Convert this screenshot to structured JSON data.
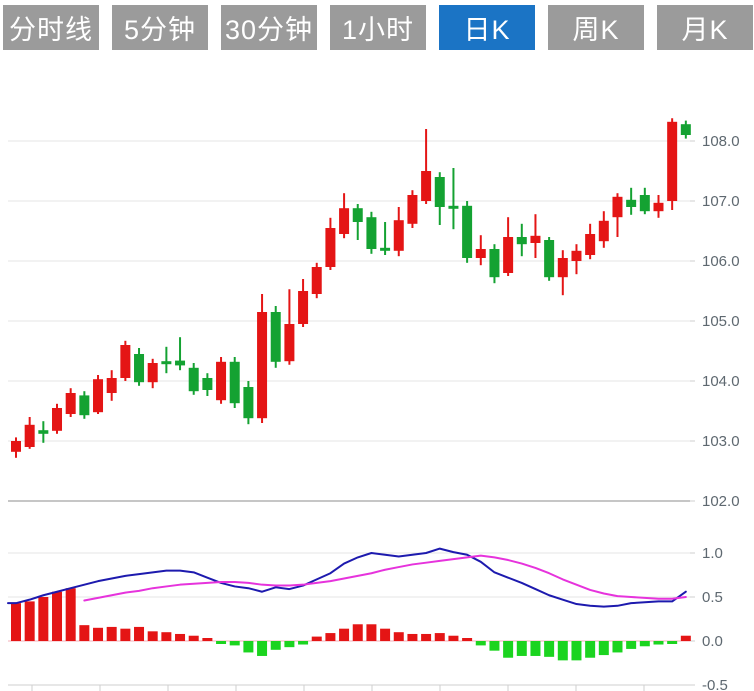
{
  "toolbar": {
    "tabs": [
      {
        "name": "tab-timeshare",
        "label": "分时线",
        "active": false
      },
      {
        "name": "tab-5min",
        "label": "5分钟",
        "active": false
      },
      {
        "name": "tab-30min",
        "label": "30分钟",
        "active": false
      },
      {
        "name": "tab-1hour",
        "label": "1小时",
        "active": false
      },
      {
        "name": "tab-daily-k",
        "label": "日K",
        "active": true
      },
      {
        "name": "tab-weekly-k",
        "label": "周K",
        "active": false
      },
      {
        "name": "tab-monthly-k",
        "label": "月K",
        "active": false
      }
    ]
  },
  "colors": {
    "tab_bg": "#9b9b9b",
    "tab_active_bg": "#1b74c5",
    "tab_text": "#ffffff",
    "candle_up": "#e41515",
    "candle_down": "#14a232",
    "macd_up": "#e41515",
    "macd_down": "#1bd41f",
    "dif_line": "#1d1aae",
    "dea_line": "#e633dc",
    "zero_line": "#f3afb9",
    "grid": "#e4e4e4",
    "grid_major": "#c6c6c6",
    "axis_line": "#cfcfcf",
    "axis_text": "#5e6870"
  },
  "chart_data": {
    "type": "candlestick",
    "title": "",
    "legend_position": "none",
    "grid": true,
    "panels": [
      "price-candles",
      "macd-indicator"
    ],
    "price_axis": {
      "side": "right",
      "range": [
        101.7,
        108.5
      ],
      "ticks": [
        {
          "v": 108.0,
          "label": "108.0"
        },
        {
          "v": 107.0,
          "label": "107.0"
        },
        {
          "v": 106.0,
          "label": "106.0"
        },
        {
          "v": 105.0,
          "label": "105.0"
        },
        {
          "v": 104.0,
          "label": "104.0"
        },
        {
          "v": 103.0,
          "label": "103.0"
        },
        {
          "v": 102.0,
          "label": "102.0"
        }
      ]
    },
    "macd_axis": {
      "side": "right",
      "range": [
        -0.5,
        1.0
      ],
      "ticks": [
        {
          "v": 1.0,
          "label": "1.0"
        },
        {
          "v": 0.5,
          "label": "0.5"
        },
        {
          "v": 0.0,
          "label": "0.0"
        },
        {
          "v": -0.5,
          "label": "-0.5"
        }
      ]
    },
    "candles": [
      {
        "o": 102.82,
        "h": 103.06,
        "l": 102.72,
        "c": 103.0
      },
      {
        "o": 102.9,
        "h": 103.4,
        "l": 102.87,
        "c": 103.27
      },
      {
        "o": 103.18,
        "h": 103.33,
        "l": 102.97,
        "c": 103.12
      },
      {
        "o": 103.17,
        "h": 103.62,
        "l": 103.12,
        "c": 103.55
      },
      {
        "o": 103.45,
        "h": 103.88,
        "l": 103.4,
        "c": 103.8
      },
      {
        "o": 103.76,
        "h": 103.83,
        "l": 103.37,
        "c": 103.43
      },
      {
        "o": 103.48,
        "h": 104.1,
        "l": 103.45,
        "c": 104.03
      },
      {
        "o": 103.8,
        "h": 104.18,
        "l": 103.67,
        "c": 104.05
      },
      {
        "o": 104.05,
        "h": 104.67,
        "l": 104.0,
        "c": 104.6
      },
      {
        "o": 104.45,
        "h": 104.55,
        "l": 103.92,
        "c": 103.98
      },
      {
        "o": 103.98,
        "h": 104.37,
        "l": 103.88,
        "c": 104.3
      },
      {
        "o": 104.33,
        "h": 104.57,
        "l": 104.13,
        "c": 104.28
      },
      {
        "o": 104.34,
        "h": 104.73,
        "l": 104.18,
        "c": 104.26
      },
      {
        "o": 104.22,
        "h": 104.3,
        "l": 103.77,
        "c": 103.83
      },
      {
        "o": 104.05,
        "h": 104.13,
        "l": 103.75,
        "c": 103.85
      },
      {
        "o": 103.68,
        "h": 104.4,
        "l": 103.62,
        "c": 104.32
      },
      {
        "o": 104.32,
        "h": 104.4,
        "l": 103.55,
        "c": 103.63
      },
      {
        "o": 103.9,
        "h": 104.0,
        "l": 103.28,
        "c": 103.38
      },
      {
        "o": 103.38,
        "h": 105.45,
        "l": 103.3,
        "c": 105.15
      },
      {
        "o": 105.15,
        "h": 105.25,
        "l": 104.22,
        "c": 104.32
      },
      {
        "o": 104.33,
        "h": 105.53,
        "l": 104.27,
        "c": 104.95
      },
      {
        "o": 104.95,
        "h": 105.7,
        "l": 104.9,
        "c": 105.5
      },
      {
        "o": 105.45,
        "h": 105.97,
        "l": 105.38,
        "c": 105.9
      },
      {
        "o": 105.9,
        "h": 106.72,
        "l": 105.85,
        "c": 106.55
      },
      {
        "o": 106.45,
        "h": 107.13,
        "l": 106.38,
        "c": 106.88
      },
      {
        "o": 106.88,
        "h": 106.95,
        "l": 106.35,
        "c": 106.65
      },
      {
        "o": 106.73,
        "h": 106.82,
        "l": 106.12,
        "c": 106.2
      },
      {
        "o": 106.22,
        "h": 106.65,
        "l": 106.1,
        "c": 106.17
      },
      {
        "o": 106.17,
        "h": 106.9,
        "l": 106.08,
        "c": 106.68
      },
      {
        "o": 106.62,
        "h": 107.18,
        "l": 106.55,
        "c": 107.1
      },
      {
        "o": 107.0,
        "h": 108.2,
        "l": 106.95,
        "c": 107.5
      },
      {
        "o": 107.4,
        "h": 107.48,
        "l": 106.6,
        "c": 106.9
      },
      {
        "o": 106.92,
        "h": 107.55,
        "l": 106.53,
        "c": 106.87
      },
      {
        "o": 106.92,
        "h": 107.0,
        "l": 105.97,
        "c": 106.05
      },
      {
        "o": 106.05,
        "h": 106.43,
        "l": 105.93,
        "c": 106.2
      },
      {
        "o": 106.2,
        "h": 106.28,
        "l": 105.63,
        "c": 105.73
      },
      {
        "o": 105.8,
        "h": 106.73,
        "l": 105.75,
        "c": 106.4
      },
      {
        "o": 106.4,
        "h": 106.62,
        "l": 106.08,
        "c": 106.28
      },
      {
        "o": 106.3,
        "h": 106.78,
        "l": 106.05,
        "c": 106.42
      },
      {
        "o": 106.35,
        "h": 106.4,
        "l": 105.67,
        "c": 105.73
      },
      {
        "o": 105.73,
        "h": 106.18,
        "l": 105.43,
        "c": 106.05
      },
      {
        "o": 106.0,
        "h": 106.28,
        "l": 105.78,
        "c": 106.17
      },
      {
        "o": 106.1,
        "h": 106.62,
        "l": 106.03,
        "c": 106.45
      },
      {
        "o": 106.33,
        "h": 106.83,
        "l": 106.22,
        "c": 106.67
      },
      {
        "o": 106.73,
        "h": 107.13,
        "l": 106.4,
        "c": 107.07
      },
      {
        "o": 107.02,
        "h": 107.22,
        "l": 106.77,
        "c": 106.9
      },
      {
        "o": 107.1,
        "h": 107.22,
        "l": 106.78,
        "c": 106.83
      },
      {
        "o": 106.83,
        "h": 107.1,
        "l": 106.72,
        "c": 106.97
      },
      {
        "o": 107.0,
        "h": 108.38,
        "l": 106.85,
        "c": 108.32
      },
      {
        "o": 108.28,
        "h": 108.34,
        "l": 108.04,
        "c": 108.1
      }
    ],
    "macd": {
      "histogram": [
        0.43,
        0.45,
        0.5,
        0.56,
        0.6,
        0.18,
        0.15,
        0.16,
        0.14,
        0.16,
        0.11,
        0.1,
        0.08,
        0.06,
        0.03,
        -0.03,
        -0.05,
        -0.13,
        -0.17,
        -0.1,
        -0.07,
        -0.04,
        0.05,
        0.09,
        0.14,
        0.19,
        0.19,
        0.14,
        0.1,
        0.08,
        0.08,
        0.09,
        0.06,
        0.03,
        -0.05,
        -0.11,
        -0.19,
        -0.17,
        -0.17,
        -0.18,
        -0.22,
        -0.22,
        -0.19,
        -0.16,
        -0.13,
        -0.09,
        -0.06,
        -0.04,
        -0.03,
        0.06
      ],
      "dif": [
        0.43,
        0.47,
        0.52,
        0.56,
        0.6,
        0.64,
        0.68,
        0.71,
        0.74,
        0.76,
        0.78,
        0.8,
        0.8,
        0.78,
        0.72,
        0.66,
        0.62,
        0.6,
        0.56,
        0.61,
        0.59,
        0.63,
        0.7,
        0.77,
        0.88,
        0.95,
        1.0,
        0.98,
        0.96,
        0.98,
        1.0,
        1.05,
        1.01,
        0.98,
        0.9,
        0.78,
        0.72,
        0.66,
        0.59,
        0.52,
        0.47,
        0.42,
        0.4,
        0.39,
        0.4,
        0.43,
        0.44,
        0.45,
        0.45,
        0.56
      ],
      "dea": [
        null,
        null,
        null,
        null,
        null,
        0.46,
        0.49,
        0.52,
        0.55,
        0.57,
        0.6,
        0.62,
        0.64,
        0.65,
        0.66,
        0.67,
        0.67,
        0.66,
        0.64,
        0.63,
        0.63,
        0.64,
        0.66,
        0.68,
        0.71,
        0.74,
        0.77,
        0.81,
        0.84,
        0.87,
        0.89,
        0.91,
        0.93,
        0.95,
        0.97,
        0.95,
        0.92,
        0.88,
        0.83,
        0.77,
        0.7,
        0.64,
        0.58,
        0.54,
        0.51,
        0.5,
        0.49,
        0.48,
        0.48,
        0.5
      ]
    }
  }
}
